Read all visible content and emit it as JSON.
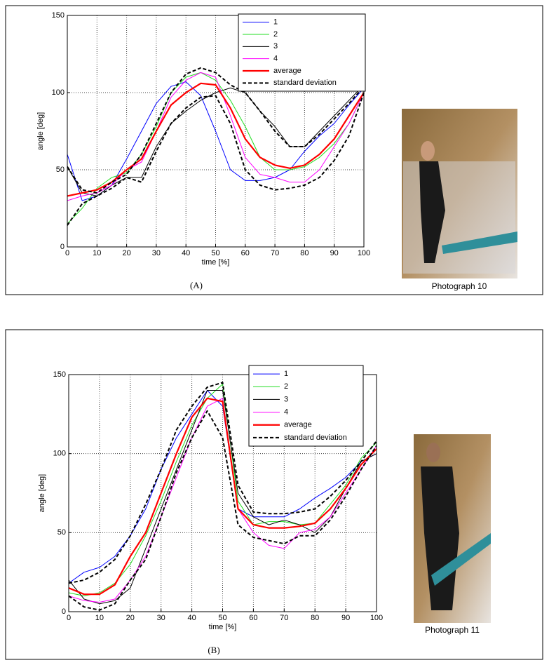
{
  "chart_data": [
    {
      "type": "line",
      "xlabel": "time [%]",
      "ylabel": "angle [deg]",
      "caption": "(A)",
      "photo_caption": "Photograph 10",
      "x": [
        0,
        5,
        10,
        15,
        20,
        25,
        30,
        35,
        40,
        45,
        50,
        55,
        60,
        65,
        70,
        75,
        80,
        85,
        90,
        95,
        100
      ],
      "xlim": [
        0,
        100
      ],
      "xticks": [
        0,
        10,
        20,
        30,
        40,
        50,
        60,
        70,
        80,
        90,
        100
      ],
      "ylim": [
        0,
        150
      ],
      "yticks": [
        0,
        50,
        100,
        150
      ],
      "grid": true,
      "series": [
        {
          "name": "1",
          "color": "#0000ff",
          "values": [
            60,
            30,
            33,
            40,
            57,
            75,
            93,
            104,
            107,
            98,
            75,
            50,
            43,
            43,
            45,
            50,
            62,
            72,
            80,
            92,
            103
          ]
        },
        {
          "name": "2",
          "color": "#22dd22",
          "values": [
            15,
            25,
            38,
            45,
            48,
            60,
            78,
            100,
            110,
            113,
            108,
            95,
            78,
            58,
            50,
            50,
            52,
            58,
            67,
            80,
            100
          ]
        },
        {
          "name": "3",
          "color": "#000000",
          "values": [
            52,
            35,
            33,
            40,
            45,
            45,
            65,
            80,
            88,
            95,
            100,
            103,
            100,
            88,
            78,
            65,
            65,
            75,
            85,
            95,
            105
          ]
        },
        {
          "name": "4",
          "color": "#ff00ff",
          "values": [
            30,
            33,
            35,
            40,
            50,
            55,
            75,
            97,
            108,
            113,
            110,
            85,
            58,
            47,
            45,
            42,
            42,
            50,
            65,
            80,
            100
          ]
        },
        {
          "name": "average",
          "color": "#ff0000",
          "values": [
            33,
            35,
            37,
            42,
            50,
            57,
            75,
            92,
            100,
            106,
            105,
            90,
            70,
            58,
            53,
            51,
            53,
            60,
            70,
            85,
            100
          ]
        },
        {
          "name": "standard deviation",
          "color": "#000000",
          "dashed": true,
          "values": [
            52,
            37,
            35,
            42,
            47,
            60,
            80,
            100,
            112,
            116,
            113,
            105,
            100,
            88,
            75,
            65,
            65,
            73,
            83,
            93,
            104
          ]
        },
        {
          "color": "#000000",
          "dashed": true,
          "values": [
            14,
            28,
            33,
            38,
            45,
            42,
            62,
            80,
            90,
            97,
            98,
            80,
            50,
            40,
            37,
            38,
            40,
            45,
            56,
            72,
            100
          ]
        }
      ]
    },
    {
      "type": "line",
      "xlabel": "time [%]",
      "ylabel": "angle [deg]",
      "caption": "(B)",
      "photo_caption": "Photograph 11",
      "x": [
        0,
        5,
        10,
        15,
        20,
        25,
        30,
        35,
        40,
        45,
        50,
        55,
        60,
        65,
        70,
        75,
        80,
        85,
        90,
        95,
        100
      ],
      "xlim": [
        0,
        100
      ],
      "xticks": [
        0,
        10,
        20,
        30,
        40,
        50,
        60,
        70,
        80,
        90,
        100
      ],
      "ylim": [
        0,
        150
      ],
      "yticks": [
        0,
        50,
        100,
        150
      ],
      "grid": true,
      "series": [
        {
          "name": "1",
          "color": "#0000ff",
          "values": [
            18,
            25,
            28,
            35,
            48,
            65,
            90,
            110,
            125,
            140,
            130,
            65,
            60,
            60,
            60,
            65,
            72,
            78,
            85,
            95,
            100
          ]
        },
        {
          "name": "2",
          "color": "#22dd22",
          "values": [
            12,
            10,
            12,
            18,
            30,
            48,
            70,
            95,
            118,
            135,
            144,
            70,
            55,
            57,
            57,
            55,
            56,
            68,
            80,
            97,
            107
          ]
        },
        {
          "name": "3",
          "color": "#000000",
          "values": [
            20,
            8,
            5,
            7,
            15,
            40,
            65,
            90,
            115,
            140,
            140,
            75,
            60,
            55,
            58,
            55,
            50,
            60,
            78,
            95,
            100
          ]
        },
        {
          "name": "4",
          "color": "#ff00ff",
          "values": [
            10,
            7,
            6,
            8,
            20,
            35,
            60,
            85,
            110,
            130,
            135,
            65,
            50,
            42,
            40,
            50,
            52,
            60,
            75,
            90,
            105
          ]
        },
        {
          "name": "average",
          "color": "#ff0000",
          "values": [
            15,
            11,
            11,
            17,
            35,
            50,
            75,
            100,
            123,
            135,
            133,
            65,
            55,
            53,
            53,
            54,
            56,
            65,
            78,
            93,
            103
          ]
        },
        {
          "name": "standard deviation",
          "color": "#000000",
          "dashed": true,
          "values": [
            18,
            20,
            25,
            33,
            48,
            68,
            90,
            115,
            130,
            142,
            145,
            80,
            63,
            62,
            62,
            63,
            65,
            73,
            83,
            95,
            108
          ]
        },
        {
          "color": "#000000",
          "dashed": true,
          "values": [
            10,
            3,
            1,
            5,
            20,
            33,
            60,
            88,
            110,
            127,
            110,
            55,
            47,
            45,
            43,
            48,
            48,
            58,
            73,
            90,
            105
          ]
        }
      ]
    }
  ]
}
